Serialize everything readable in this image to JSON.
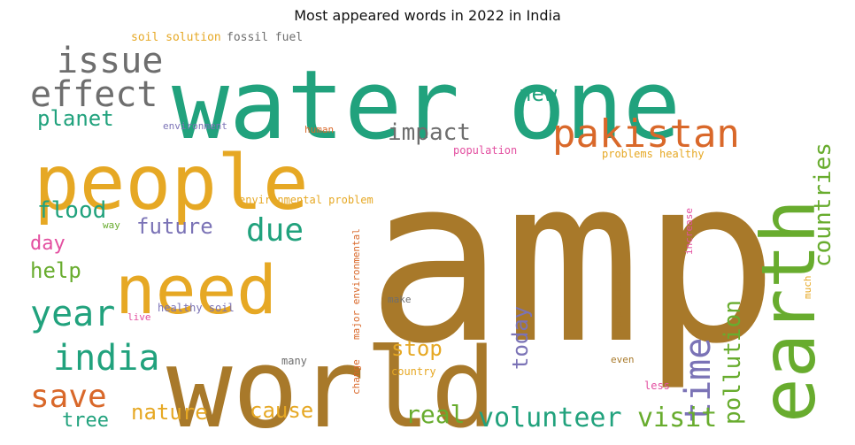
{
  "title": "Most appeared words in 2022 in India",
  "palette": {
    "green": "#21a27d",
    "gold": "#e6a824",
    "brown": "#a8792a",
    "grey": "#6e6e6e",
    "orange": "#d9682a",
    "lime": "#68ac2e",
    "purple": "#7b73b6",
    "pink": "#e34fa0"
  },
  "words": [
    {
      "text": "amp",
      "color": "brown",
      "rotate": false
    },
    {
      "text": "world",
      "color": "brown",
      "rotate": false
    },
    {
      "text": "water",
      "color": "green",
      "rotate": false
    },
    {
      "text": "one",
      "color": "green",
      "rotate": false
    },
    {
      "text": "people",
      "color": "gold",
      "rotate": false
    },
    {
      "text": "need",
      "color": "gold",
      "rotate": false
    },
    {
      "text": "earth",
      "color": "lime",
      "rotate": true
    },
    {
      "text": "pakistan",
      "color": "orange",
      "rotate": false
    },
    {
      "text": "issue",
      "color": "grey",
      "rotate": false
    },
    {
      "text": "effect",
      "color": "grey",
      "rotate": false
    },
    {
      "text": "india",
      "color": "green",
      "rotate": false
    },
    {
      "text": "year",
      "color": "green",
      "rotate": false
    },
    {
      "text": "time",
      "color": "purple",
      "rotate": true
    },
    {
      "text": "save",
      "color": "orange",
      "rotate": false
    },
    {
      "text": "due",
      "color": "green",
      "rotate": false
    },
    {
      "text": "countries",
      "color": "lime",
      "rotate": true
    },
    {
      "text": "pollution",
      "color": "lime",
      "rotate": true
    },
    {
      "text": "volunteer",
      "color": "green",
      "rotate": false
    },
    {
      "text": "visit",
      "color": "lime",
      "rotate": false
    },
    {
      "text": "real",
      "color": "lime",
      "rotate": false
    },
    {
      "text": "impact",
      "color": "grey",
      "rotate": false
    },
    {
      "text": "planet",
      "color": "green",
      "rotate": false
    },
    {
      "text": "flood",
      "color": "green",
      "rotate": false
    },
    {
      "text": "future",
      "color": "purple",
      "rotate": false
    },
    {
      "text": "new",
      "color": "green",
      "rotate": false
    },
    {
      "text": "day",
      "color": "pink",
      "rotate": false
    },
    {
      "text": "help",
      "color": "lime",
      "rotate": false
    },
    {
      "text": "today",
      "color": "purple",
      "rotate": true
    },
    {
      "text": "stop",
      "color": "gold",
      "rotate": false
    },
    {
      "text": "nature",
      "color": "gold",
      "rotate": false
    },
    {
      "text": "cause",
      "color": "gold",
      "rotate": false
    },
    {
      "text": "tree",
      "color": "green",
      "rotate": false
    },
    {
      "text": "soil solution",
      "color": "gold",
      "rotate": false
    },
    {
      "text": "fossil fuel",
      "color": "grey",
      "rotate": false
    },
    {
      "text": "environment",
      "color": "purple",
      "rotate": false
    },
    {
      "text": "human",
      "color": "orange",
      "rotate": false
    },
    {
      "text": "population",
      "color": "pink",
      "rotate": false
    },
    {
      "text": "problems healthy",
      "color": "gold",
      "rotate": false
    },
    {
      "text": "environmental problem",
      "color": "gold",
      "rotate": false
    },
    {
      "text": "way",
      "color": "lime",
      "rotate": false
    },
    {
      "text": "increase",
      "color": "pink",
      "rotate": true
    },
    {
      "text": "much",
      "color": "gold",
      "rotate": true
    },
    {
      "text": "healthy soil",
      "color": "purple",
      "rotate": false
    },
    {
      "text": "make",
      "color": "grey",
      "rotate": false
    },
    {
      "text": "live",
      "color": "pink",
      "rotate": false
    },
    {
      "text": "temperature",
      "color": "brown",
      "rotate": true
    },
    {
      "text": "change",
      "color": "orange",
      "rotate": true
    },
    {
      "text": "major environmental",
      "color": "orange",
      "rotate": true
    },
    {
      "text": "many",
      "color": "grey",
      "rotate": false
    },
    {
      "text": "country",
      "color": "gold",
      "rotate": false
    },
    {
      "text": "even",
      "color": "brown",
      "rotate": false
    },
    {
      "text": "less",
      "color": "pink",
      "rotate": false
    }
  ]
}
